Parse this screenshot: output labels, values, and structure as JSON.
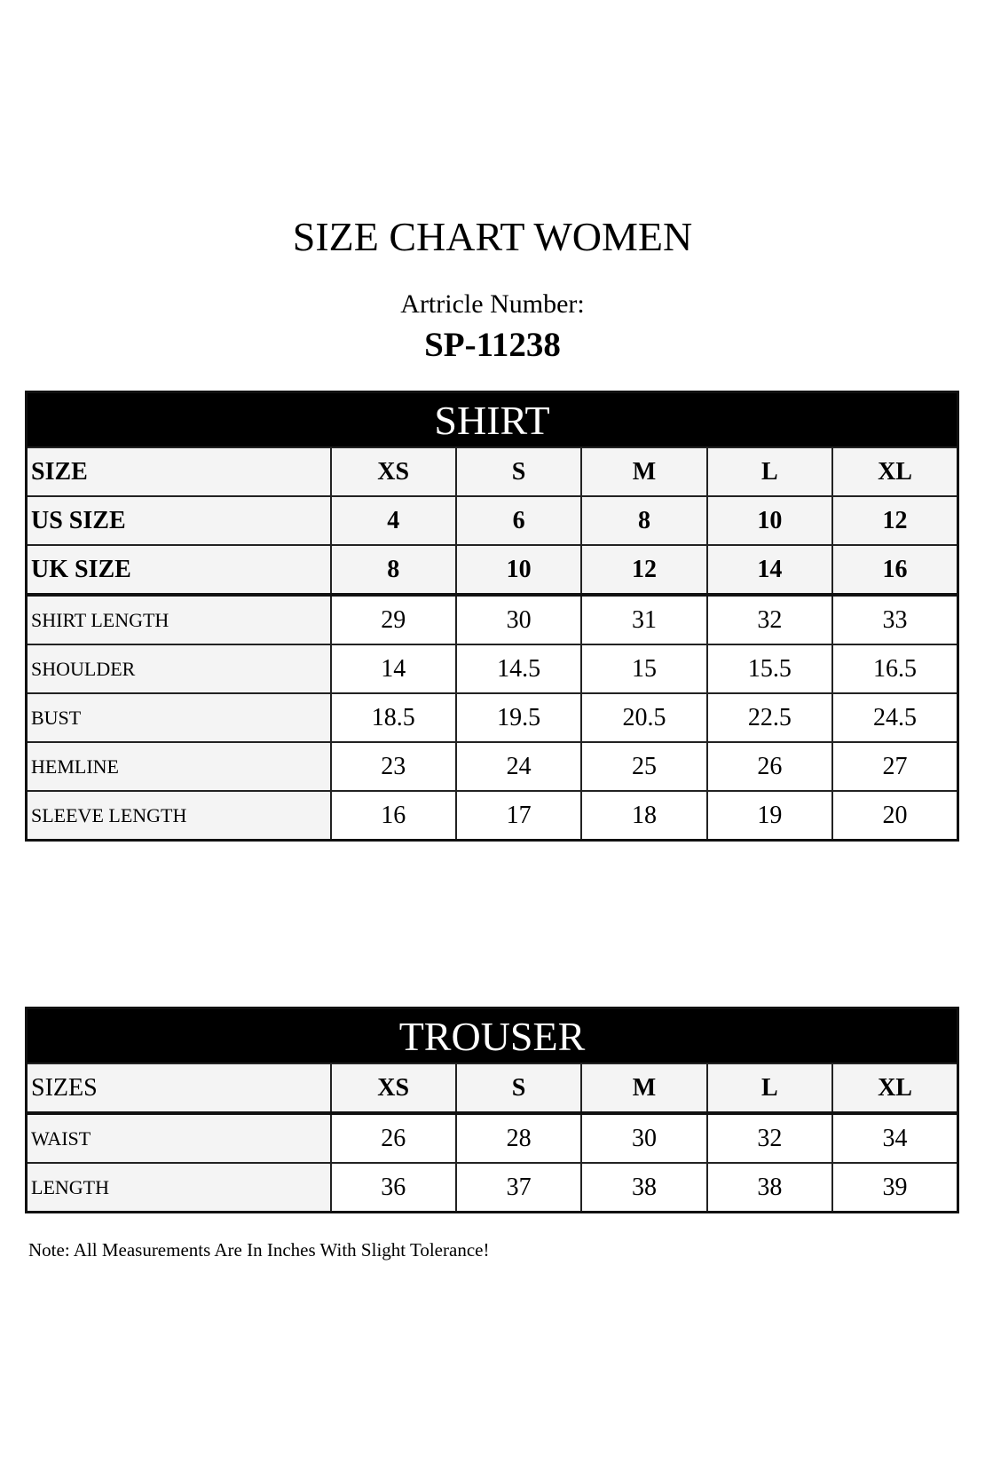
{
  "title": "SIZE CHART WOMEN",
  "article_label": "Artricle Number:",
  "article_number": "SP-11238",
  "shirt": {
    "heading": "SHIRT",
    "header_rows": [
      {
        "label": "SIZE",
        "values": [
          "XS",
          "S",
          "M",
          "L",
          "XL"
        ]
      },
      {
        "label": "US SIZE",
        "values": [
          "4",
          "6",
          "8",
          "10",
          "12"
        ]
      },
      {
        "label": "UK SIZE",
        "values": [
          "8",
          "10",
          "12",
          "14",
          "16"
        ]
      }
    ],
    "rows": [
      {
        "label": "SHIRT LENGTH",
        "values": [
          "29",
          "30",
          "31",
          "32",
          "33"
        ]
      },
      {
        "label": "SHOULDER",
        "values": [
          "14",
          "14.5",
          "15",
          "15.5",
          "16.5"
        ]
      },
      {
        "label": "BUST",
        "values": [
          "18.5",
          "19.5",
          "20.5",
          "22.5",
          "24.5"
        ]
      },
      {
        "label": "HEMLINE",
        "values": [
          "23",
          "24",
          "25",
          "26",
          "27"
        ]
      },
      {
        "label": "SLEEVE LENGTH",
        "values": [
          "16",
          "17",
          "18",
          "19",
          "20"
        ]
      }
    ]
  },
  "trouser": {
    "heading": "TROUSER",
    "header_rows": [
      {
        "label": "SIZES",
        "values": [
          "XS",
          "S",
          "M",
          "L",
          "XL"
        ]
      }
    ],
    "rows": [
      {
        "label": "WAIST",
        "values": [
          "26",
          "28",
          "30",
          "32",
          "34"
        ]
      },
      {
        "label": "LENGTH",
        "values": [
          "36",
          "37",
          "38",
          "38",
          "39"
        ]
      }
    ]
  },
  "note": "Note: All Measurements Are In Inches With Slight Tolerance!"
}
